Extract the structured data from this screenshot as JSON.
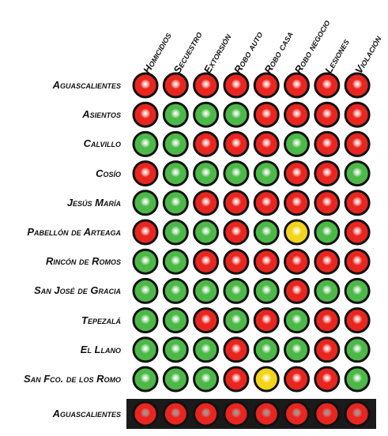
{
  "chart_data": {
    "type": "heatmap",
    "columns": [
      "Homicidios",
      "Secuestro",
      "Extorsión",
      "Robo auto",
      "Robo casa",
      "Robo negocio",
      "Lesiones",
      "Violación"
    ],
    "rows": [
      {
        "label": "Aguascalientes",
        "values": [
          "red",
          "red",
          "red",
          "red",
          "red",
          "red",
          "red",
          "red"
        ]
      },
      {
        "label": "Asientos",
        "values": [
          "red",
          "green",
          "green",
          "green",
          "red",
          "red",
          "red",
          "red"
        ]
      },
      {
        "label": "Calvillo",
        "values": [
          "green",
          "green",
          "red",
          "red",
          "red",
          "green",
          "red",
          "red"
        ]
      },
      {
        "label": "Cosío",
        "values": [
          "red",
          "green",
          "green",
          "green",
          "green",
          "red",
          "red",
          "green"
        ]
      },
      {
        "label": "Jesús María",
        "values": [
          "green",
          "green",
          "red",
          "red",
          "red",
          "red",
          "red",
          "red"
        ]
      },
      {
        "label": "Pabellón de Arteaga",
        "values": [
          "red",
          "green",
          "green",
          "red",
          "green",
          "yellow",
          "green",
          "red"
        ]
      },
      {
        "label": "Rincón de Romos",
        "values": [
          "green",
          "green",
          "red",
          "red",
          "red",
          "red",
          "red",
          "red"
        ]
      },
      {
        "label": "San José de Gracia",
        "values": [
          "green",
          "green",
          "green",
          "green",
          "green",
          "red",
          "green",
          "green"
        ]
      },
      {
        "label": "Tepezalá",
        "values": [
          "green",
          "green",
          "red",
          "green",
          "red",
          "green",
          "red",
          "red"
        ]
      },
      {
        "label": "El Llano",
        "values": [
          "green",
          "green",
          "green",
          "red",
          "green",
          "green",
          "red",
          "green"
        ]
      },
      {
        "label": "San Fco. de los Romo",
        "values": [
          "green",
          "green",
          "green",
          "red",
          "yellow",
          "red",
          "red",
          "green"
        ]
      }
    ],
    "total_row": {
      "label": "Aguascalientes",
      "values": [
        "red",
        "red",
        "red",
        "red",
        "red",
        "red",
        "red",
        "red"
      ]
    },
    "colors": {
      "red": "#e8251f",
      "green": "#4cb848",
      "yellow": "#f2d51a",
      "outline": "#111111",
      "total_band": "#1a1a1a"
    },
    "legend": "none",
    "grid": false
  }
}
